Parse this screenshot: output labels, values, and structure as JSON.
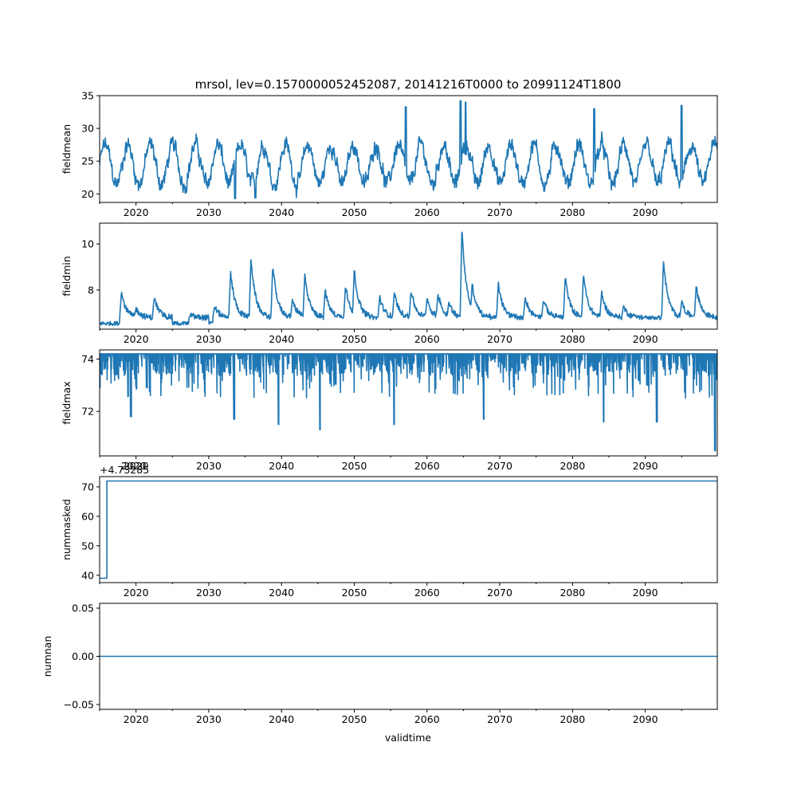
{
  "chart_data": {
    "type": "line",
    "title": "mrsol, lev=0.1570000052452087, 20141216T0000 to 20991124T1800",
    "xlabel": "validtime",
    "x_range": [
      2015.0,
      2099.9
    ],
    "x_ticks": [
      2020,
      2030,
      2040,
      2050,
      2060,
      2070,
      2080,
      2090
    ],
    "x_tick_labels": [
      "2020",
      "2030",
      "2040",
      "2050",
      "2060",
      "2070",
      "2080",
      "2090"
    ],
    "color": "#1f77b4",
    "panels": [
      {
        "id": "fieldmean",
        "ylabel": "fieldmean",
        "ylim": [
          18.7,
          35
        ],
        "yticks": [
          20,
          25,
          30,
          35
        ],
        "ytick_labels": [
          "20",
          "25",
          "30",
          "35"
        ],
        "behavior": "noisy",
        "baseline": 24.5,
        "amplitude": 3.0,
        "noise": 2.2,
        "spikes": [
          {
            "x": 2057.1,
            "y": 33.3
          },
          {
            "x": 2064.6,
            "y": 34.2
          },
          {
            "x": 2065.3,
            "y": 34.0
          },
          {
            "x": 2033.6,
            "y": 19.3
          },
          {
            "x": 2036.4,
            "y": 19.4
          },
          {
            "x": 2095.0,
            "y": 33.5
          },
          {
            "x": 2083.0,
            "y": 33.0
          }
        ],
        "offset_label": ""
      },
      {
        "id": "fieldmin",
        "ylabel": "fieldmin",
        "ylim": [
          6.3,
          10.9
        ],
        "yticks": [
          8,
          10
        ],
        "ytick_labels": [
          "8",
          "10"
        ],
        "behavior": "decay",
        "baseline": 6.8,
        "peaks": [
          {
            "x": 2018.0,
            "y": 7.9
          },
          {
            "x": 2020.0,
            "y": 7.2
          },
          {
            "x": 2022.5,
            "y": 7.7
          },
          {
            "x": 2027.5,
            "y": 6.9
          },
          {
            "x": 2030.8,
            "y": 7.3
          },
          {
            "x": 2033.0,
            "y": 8.8
          },
          {
            "x": 2035.8,
            "y": 9.4
          },
          {
            "x": 2038.8,
            "y": 9.1
          },
          {
            "x": 2041.5,
            "y": 7.6
          },
          {
            "x": 2043.2,
            "y": 8.7
          },
          {
            "x": 2046.0,
            "y": 8.0
          },
          {
            "x": 2048.8,
            "y": 8.2
          },
          {
            "x": 2050.0,
            "y": 8.9
          },
          {
            "x": 2053.5,
            "y": 7.7
          },
          {
            "x": 2055.5,
            "y": 7.9
          },
          {
            "x": 2057.8,
            "y": 8.0
          },
          {
            "x": 2060.0,
            "y": 7.6
          },
          {
            "x": 2061.5,
            "y": 7.9
          },
          {
            "x": 2063.0,
            "y": 7.5
          },
          {
            "x": 2064.8,
            "y": 10.7
          },
          {
            "x": 2066.2,
            "y": 8.3
          },
          {
            "x": 2069.8,
            "y": 8.3
          },
          {
            "x": 2073.5,
            "y": 7.7
          },
          {
            "x": 2076.0,
            "y": 7.6
          },
          {
            "x": 2079.0,
            "y": 8.6
          },
          {
            "x": 2081.5,
            "y": 8.7
          },
          {
            "x": 2084.0,
            "y": 7.9
          },
          {
            "x": 2087.0,
            "y": 7.3
          },
          {
            "x": 2092.5,
            "y": 9.3
          },
          {
            "x": 2095.0,
            "y": 7.5
          },
          {
            "x": 2097.0,
            "y": 8.2
          }
        ],
        "offset_label": ""
      },
      {
        "id": "fieldmax",
        "ylabel": "fieldmax",
        "ylim": [
          70.3,
          74.35
        ],
        "yticks": [
          72,
          74
        ],
        "ytick_labels": [
          "72",
          "74"
        ],
        "behavior": "dips",
        "baseline": 74.2,
        "dips": [
          {
            "x": 2019.3,
            "y": 71.8
          },
          {
            "x": 2033.5,
            "y": 71.7
          },
          {
            "x": 2039.6,
            "y": 71.5
          },
          {
            "x": 2045.3,
            "y": 71.3
          },
          {
            "x": 2055.5,
            "y": 71.5
          },
          {
            "x": 2067.8,
            "y": 71.7
          },
          {
            "x": 2084.3,
            "y": 71.6
          },
          {
            "x": 2091.6,
            "y": 71.6
          },
          {
            "x": 2099.6,
            "y": 70.5
          }
        ],
        "offset_label": ""
      },
      {
        "id": "nummasked",
        "ylabel": "nummasked",
        "ylim": [
          37.5,
          73.5
        ],
        "yticks": [
          40,
          50,
          60,
          70
        ],
        "ytick_labels": [
          "40",
          "50",
          "60",
          "70"
        ],
        "behavior": "step",
        "step": {
          "x": 2016.0,
          "before": 39,
          "after": 72
        },
        "offset_label": "+4.73285",
        "extra_tick_label": "2020"
      },
      {
        "id": "numnan",
        "ylabel": "numnan",
        "ylim": [
          -0.055,
          0.055
        ],
        "yticks": [
          -0.05,
          0.0,
          0.05
        ],
        "ytick_labels": [
          "−0.05",
          "0.00",
          "0.05"
        ],
        "behavior": "flat",
        "value": 0.0,
        "offset_label": ""
      }
    ]
  }
}
